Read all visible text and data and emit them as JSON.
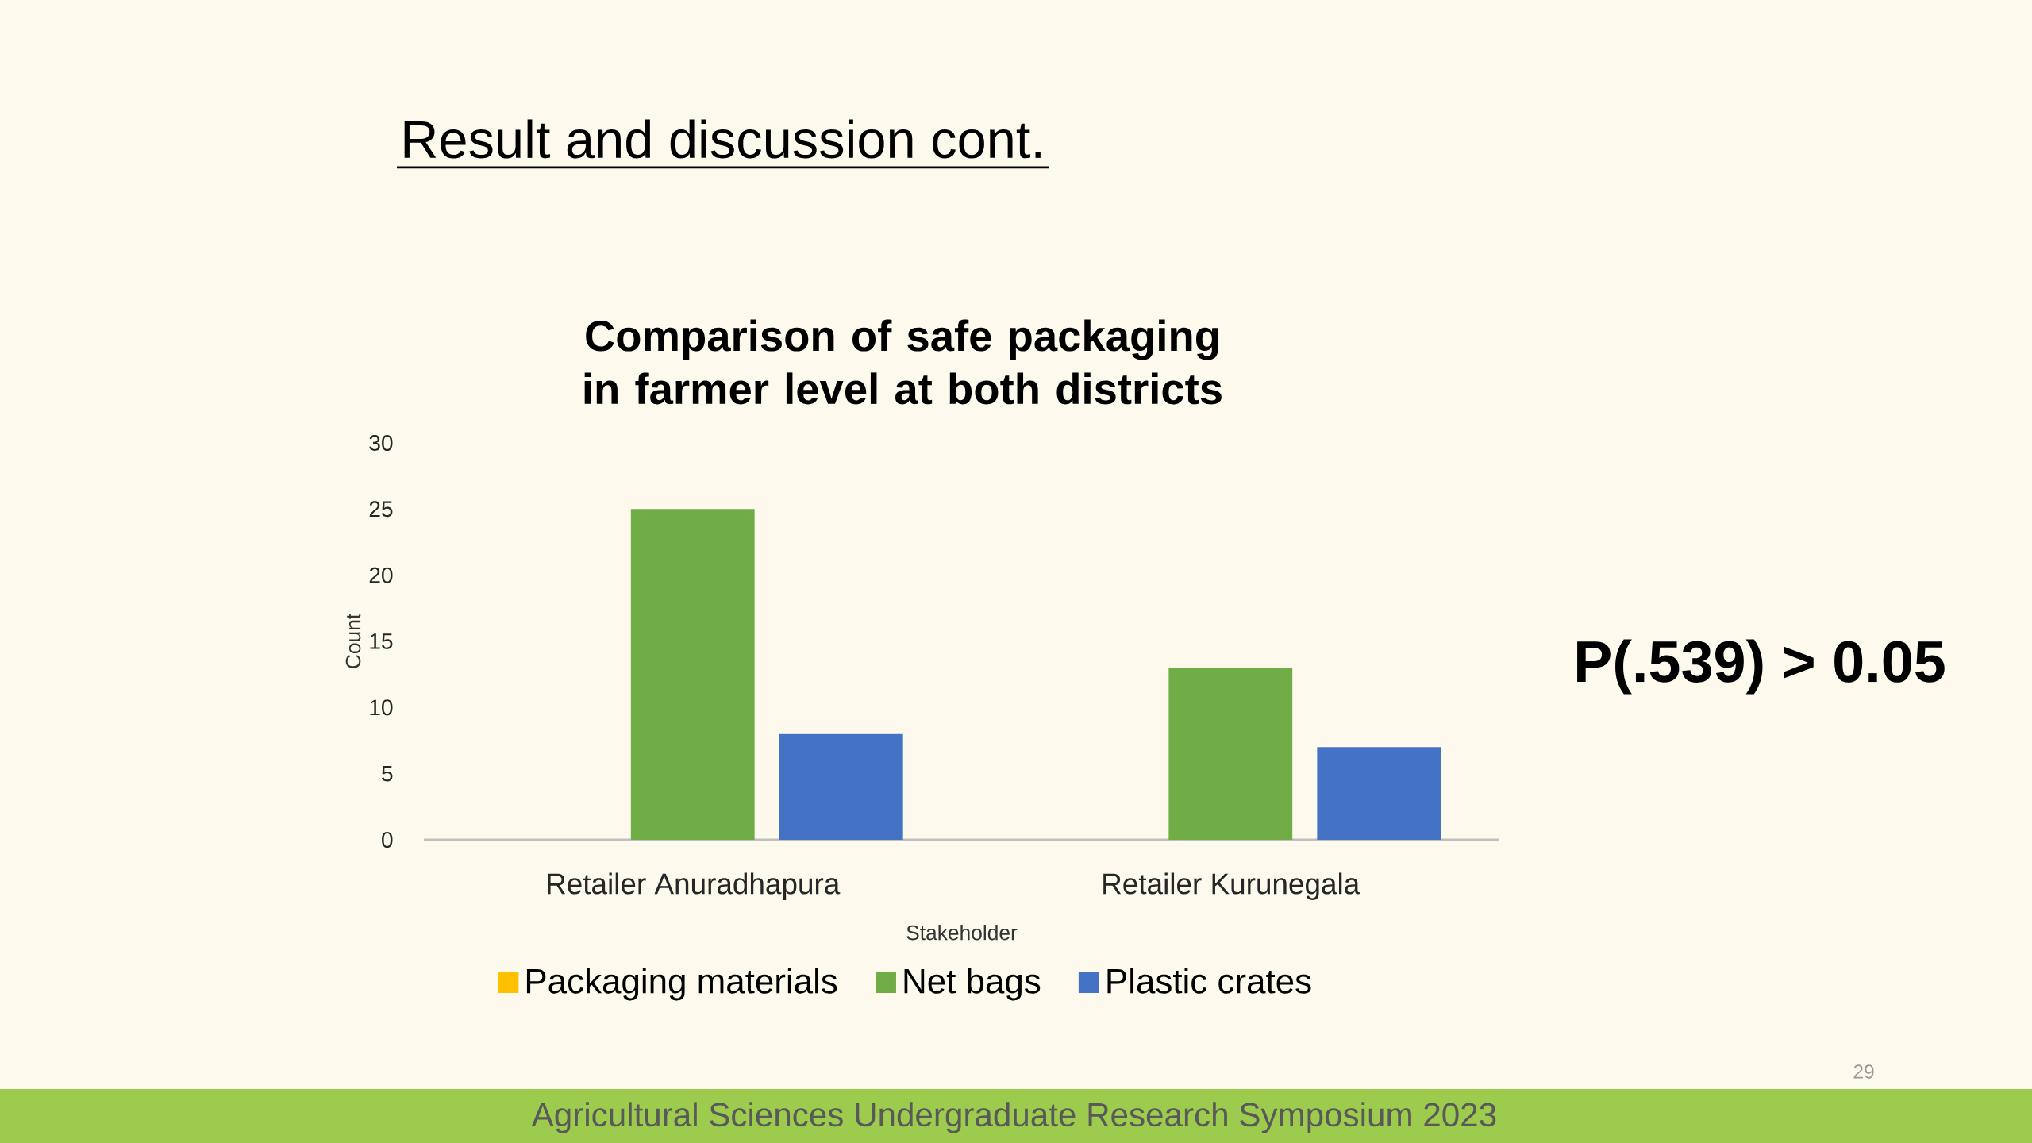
{
  "chart_data": {
    "type": "bar",
    "title": "Comparison of safe packaging in farmer level at both districts",
    "xlabel": "Stakeholder",
    "ylabel": "Count",
    "categories": [
      "Retailer Anuradhapura",
      "Retailer Kurunegala"
    ],
    "series": [
      {
        "name": "Packaging materials",
        "color": "#ffc000",
        "values": [
          0,
          0
        ]
      },
      {
        "name": "Net bags",
        "color": "#70ad47",
        "values": [
          25,
          13
        ]
      },
      {
        "name": "Plastic crates",
        "color": "#4472c4",
        "values": [
          8,
          7
        ]
      }
    ],
    "ylim": [
      0,
      30
    ],
    "yticks": [
      0,
      5,
      10,
      15,
      20,
      25,
      30
    ],
    "legend": "bottom",
    "annotations": [
      "Result and discussion cont.",
      "P(.539) > 0.05",
      "Agricultural Sciences Undergraduate Research Symposium 2023",
      "29"
    ]
  }
}
